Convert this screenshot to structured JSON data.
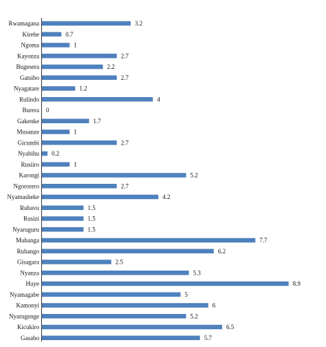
{
  "chart_data": {
    "type": "bar",
    "orientation": "horizontal",
    "title": "",
    "xlabel": "",
    "ylabel": "",
    "xlim": [
      0,
      9.2
    ],
    "grid": false,
    "legend": "none",
    "bar_color": "#4f81bd",
    "categories": [
      "Rwamagana",
      "Kirehe",
      "Ngoma",
      "Kayonza",
      "Bugesera",
      "Gatsibo",
      "Nyagatare",
      "Rulindo",
      "Burera",
      "Gakenke",
      "Musanze",
      "Gicumbi",
      "Nyabihu",
      "Rusiiro",
      "Karongi",
      "Ngororero",
      "Nyamasheke",
      "Rubavu",
      "Rusizi",
      "Nyaruguru",
      "Muhanga",
      "Ruhango",
      "Gisagara",
      "Nyanza",
      "Huye",
      "Nyamagabe",
      "Kamonyi",
      "Nyarugenge",
      "Kicukiro",
      "Gasabo"
    ],
    "values": [
      3.2,
      0.7,
      1,
      2.7,
      2.2,
      2.7,
      1.2,
      4,
      0,
      1.7,
      1,
      2.7,
      0.2,
      1,
      5.2,
      2.7,
      4.2,
      1.5,
      1.5,
      1.5,
      7.7,
      6.2,
      2.5,
      5.3,
      8.9,
      5,
      6,
      5.2,
      6.5,
      5.7
    ],
    "value_labels": [
      "3.2",
      "0.7",
      "1",
      "2.7",
      "2.2",
      "2.7",
      "1.2",
      "4",
      "0",
      "1.7",
      "1",
      "2.7",
      "0.2",
      "1",
      "5.2",
      "2.7",
      "4.2",
      "1.5",
      "1.5",
      "1.5",
      "7.7",
      "6.2",
      "2.5",
      "5.3",
      "8.9",
      "5",
      "6",
      "5.2",
      "6.5",
      "5.7"
    ]
  }
}
